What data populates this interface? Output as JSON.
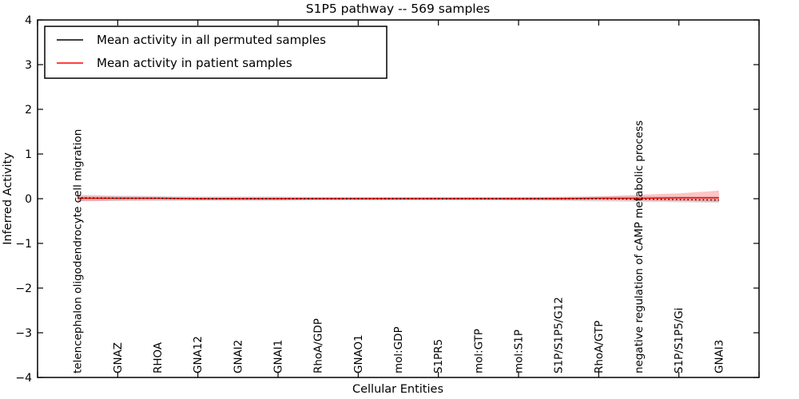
{
  "chart_data": {
    "type": "line",
    "title": "S1P5 pathway -- 569 samples",
    "xlabel": "Cellular Entities",
    "ylabel": "Inferred Activity",
    "xlim": [
      0,
      18
    ],
    "ylim": [
      -4,
      4
    ],
    "yticks": [
      -4,
      -3,
      -2,
      -1,
      0,
      1,
      2,
      3,
      4
    ],
    "xticks": [
      0,
      2,
      4,
      6,
      8,
      10,
      12,
      14,
      16,
      18
    ],
    "grid": false,
    "legend_position": "upper left",
    "categories": [
      "telencephalon oligodendrocyte cell migration",
      "GNAZ",
      "RHOA",
      "GNA12",
      "GNAI2",
      "GNAI1",
      "RhoA/GDP",
      "GNAO1",
      "mol:GDP",
      "S1PR5",
      "mol:GTP",
      "mol:S1P",
      "S1P/S1P5/G12",
      "RhoA/GTP",
      "negative regulation of cAMP metabolic process",
      "S1P/S1P5/Gi",
      "GNAI3"
    ],
    "x": [
      1,
      2,
      3,
      4,
      5,
      6,
      7,
      8,
      9,
      10,
      11,
      12,
      13,
      14,
      15,
      16,
      17
    ],
    "series": [
      {
        "name": "Mean activity in all permuted samples",
        "color": "#000000",
        "line_style": "dotted",
        "band_color": "#999999",
        "band_opacity": 0.35,
        "values": [
          0.02,
          0.01,
          0.01,
          0.0,
          0.0,
          0.0,
          0.0,
          0.0,
          0.0,
          0.0,
          0.0,
          0.0,
          0.0,
          0.0,
          -0.01,
          -0.02,
          -0.03
        ],
        "band_upper": [
          0.09,
          0.07,
          0.06,
          0.05,
          0.05,
          0.05,
          0.04,
          0.04,
          0.04,
          0.04,
          0.04,
          0.04,
          0.04,
          0.05,
          0.05,
          0.05,
          0.05
        ],
        "band_lower": [
          -0.06,
          -0.05,
          -0.05,
          -0.05,
          -0.05,
          -0.05,
          -0.04,
          -0.04,
          -0.04,
          -0.04,
          -0.04,
          -0.04,
          -0.05,
          -0.06,
          -0.07,
          -0.08,
          -0.09
        ]
      },
      {
        "name": "Mean activity in patient samples",
        "color": "#ff0000",
        "line_style": "solid",
        "band_color": "#ff2a2a",
        "band_opacity": 0.28,
        "values": [
          0.01,
          0.01,
          0.01,
          0.0,
          0.0,
          0.0,
          0.0,
          0.0,
          0.0,
          0.0,
          0.0,
          0.0,
          0.0,
          0.01,
          0.01,
          0.02,
          0.02
        ],
        "band_upper": [
          0.06,
          0.05,
          0.04,
          0.03,
          0.03,
          0.03,
          0.03,
          0.03,
          0.03,
          0.03,
          0.03,
          0.03,
          0.04,
          0.05,
          0.09,
          0.12,
          0.18
        ],
        "band_lower": [
          -0.05,
          -0.04,
          -0.03,
          -0.03,
          -0.03,
          -0.03,
          -0.02,
          -0.02,
          -0.02,
          -0.02,
          -0.02,
          -0.03,
          -0.03,
          -0.03,
          -0.04,
          -0.05,
          -0.07
        ]
      }
    ]
  }
}
